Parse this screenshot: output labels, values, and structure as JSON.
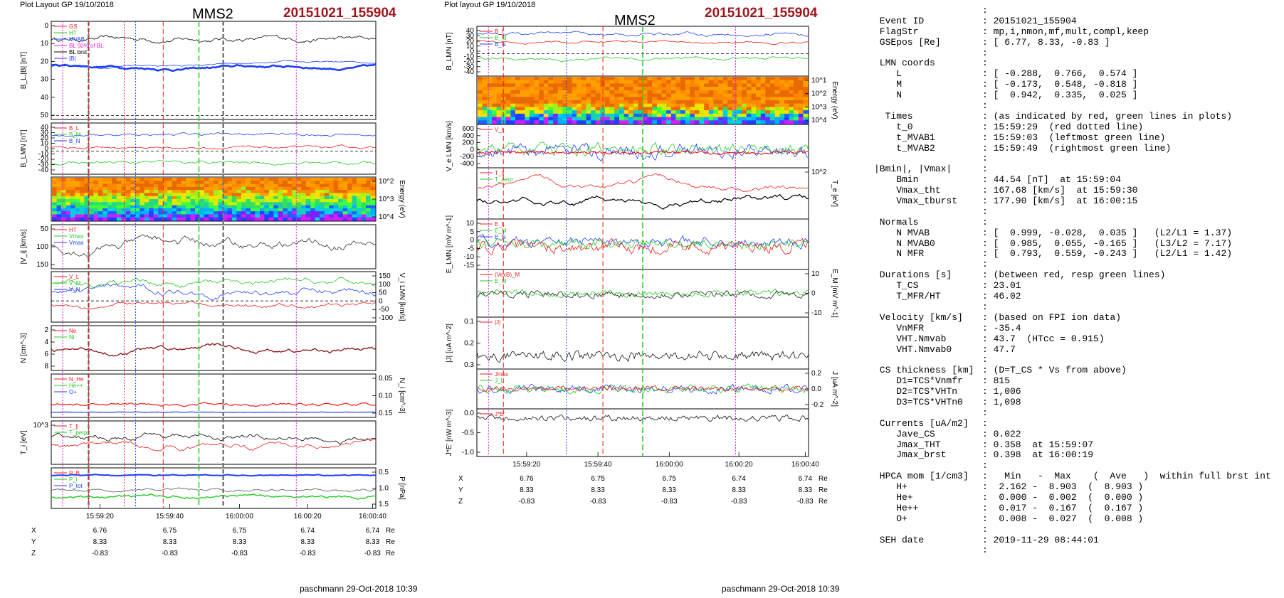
{
  "page": {
    "left_header": "Plot Layout GP 19/10/2018",
    "middle_header": "Plot layout GP 19/10/2018",
    "spacecraft": "MMS2",
    "event": "20151021_155904",
    "footer": "paschmann 29-Oct-2018 10:39"
  },
  "colors": {
    "event_red": "#a0161c",
    "blue": "#1f3fff",
    "green": "#1fcc1f",
    "red": "#ee1c1c",
    "magenta": "#e020e0",
    "black": "#000000"
  },
  "left_panels": [
    {
      "label": "B_L,|B| [nT]",
      "ticks": [
        "0",
        "10",
        "20",
        "30",
        "40",
        "50"
      ],
      "legend": [
        "GS",
        "HT",
        "MVAB",
        "BL 50% of BL",
        "BL brst",
        "|B|"
      ]
    },
    {
      "label": "B_LMN [nT]",
      "ticks": [
        "40",
        "30",
        "20",
        "10",
        "0",
        "-10",
        "-20",
        "-30",
        "-40"
      ],
      "legend": [
        "B_L",
        "B_M",
        "B_N"
      ]
    },
    {
      "label": "Energy (eV)",
      "ticks": [
        "10^2",
        "10^3",
        "10^4"
      ],
      "legend": []
    },
    {
      "label": "|V_i| [km/s]",
      "ticks": [
        "50",
        "100",
        "150"
      ],
      "legend": [
        "HT",
        "Vmax",
        "Vmax"
      ]
    },
    {
      "label": "V_i LMN [km/s]",
      "ticks": [
        "150",
        "100",
        "50",
        "0",
        "-50",
        "-100"
      ],
      "legend": [
        "V_L",
        "V_M",
        "V_N"
      ]
    },
    {
      "label": "N [cm^-3]",
      "ticks": [
        "2",
        "4",
        "6",
        "8"
      ],
      "legend": [
        "Ne",
        "Ni"
      ]
    },
    {
      "label": "N_i [cm^-3]",
      "ticks": [
        "0.05",
        "0.10",
        "0.15"
      ],
      "legend": [
        "N_He",
        "He++",
        "O+"
      ]
    },
    {
      "label": "T_i [eV]",
      "ticks": [
        "10^3"
      ],
      "legend": [
        "T_||",
        "T_perp"
      ]
    },
    {
      "label": "P [nPa]",
      "ticks": [
        "0.5",
        "1.0",
        "1.5"
      ],
      "legend": [
        "P_B",
        "P_i",
        "P_tot"
      ]
    }
  ],
  "middle_panels": [
    {
      "label": "B_LMN [nT]",
      "ticks": [
        "40",
        "30",
        "20",
        "10",
        "0",
        "-10",
        "-20",
        "-30",
        "-40"
      ],
      "legend": [
        "B_L",
        "B_M",
        "B_N"
      ]
    },
    {
      "label": "Energy (eV)",
      "ticks": [
        "10^1",
        "10^2",
        "10^3",
        "10^4"
      ],
      "legend": []
    },
    {
      "label": "V_e LMN [km/s]",
      "ticks": [
        "600",
        "400",
        "200",
        "0",
        "-200",
        "-400"
      ],
      "legend": [
        "V_L"
      ]
    },
    {
      "label": "T_e [eV]",
      "ticks": [
        "10^2"
      ],
      "legend": [
        "T_||",
        "T_perp"
      ]
    },
    {
      "label": "E_LMN [mV m^-1]",
      "ticks": [
        "10",
        "5",
        "0",
        "-5",
        "-10",
        "-15"
      ],
      "legend": [
        "E_L",
        "E_M",
        "E_N"
      ]
    },
    {
      "label": "E_M [mV m^-1]",
      "ticks": [
        "10",
        "0",
        "-10"
      ],
      "legend": [
        "(VexB)_M",
        "E_M"
      ]
    },
    {
      "label": "|J| [uA m^-2]",
      "ticks": [
        "0.1",
        "0.2",
        "0.3"
      ],
      "legend": [
        "|J|"
      ]
    },
    {
      "label": "J [uA m^-2]",
      "ticks": [
        "0.2",
        "0.0",
        "-0.2"
      ],
      "legend": [
        "Jmax",
        "J_L"
      ]
    },
    {
      "label": "J*E' [nW m^-3]",
      "ticks": [
        "0.0",
        "-0.5",
        "-1.0"
      ],
      "legend": [
        "J*E'"
      ]
    }
  ],
  "left_time_ticks": [
    "15:59:20",
    "15:59:40",
    "16:00:00",
    "16:00:20",
    "16:00:40"
  ],
  "middle_time_ticks": [
    "15:59:20",
    "15:59:40",
    "16:00:00",
    "16:00:20",
    "16:00:40"
  ],
  "position_table": {
    "rows": [
      {
        "label": "X",
        "values": [
          "6.76",
          "6.75",
          "6.75",
          "6.74",
          "6.74"
        ],
        "unit": "Re"
      },
      {
        "label": "Y",
        "values": [
          "8.33",
          "8.33",
          "8.33",
          "8.33",
          "8.33"
        ],
        "unit": "Re"
      },
      {
        "label": "Z",
        "values": [
          "-0.83",
          "-0.83",
          "-0.83",
          "-0.83",
          "-0.83"
        ],
        "unit": "Re"
      }
    ]
  },
  "summary_lines": [
    [
      "",
      ":"
    ],
    [
      " Event ID",
      ": 20151021_155904"
    ],
    [
      " FlagStr",
      ": mp,i,nmon,mf,mult,compl,keep"
    ],
    [
      " GSEpos [Re]",
      ": [ 6.77, 8.33, -0.83 ]"
    ],
    [
      "",
      ":"
    ],
    [
      " LMN coords",
      ":"
    ],
    [
      "    L",
      ": [ -0.288,  0.766,  0.574 ]"
    ],
    [
      "    M",
      ": [ -0.173,  0.548, -0.818 ]"
    ],
    [
      "    N",
      ": [  0.942,  0.335,  0.025 ]"
    ],
    [
      "",
      ":"
    ],
    [
      "  Times",
      ": (as indicated by red, green lines in plots)"
    ],
    [
      "    t_0",
      ": 15:59:29  (red dotted line)"
    ],
    [
      "    t_MVAB1",
      ": 15:59:03  (leftmost green line)"
    ],
    [
      "    t_MVAB2",
      ": 15:59:49  (rightmost green line)"
    ],
    [
      "",
      ":"
    ],
    [
      "|Bmin|, |Vmax|",
      ":"
    ],
    [
      "    Bmin",
      ": 44.54 [nT]  at 15:59:04"
    ],
    [
      "    Vmax_tht",
      ": 167.68 [km/s]  at 15:59:30"
    ],
    [
      "    Vmax_tburst",
      ": 177.90 [km/s]  at 16:00:15"
    ],
    [
      "",
      ":"
    ],
    [
      " Normals",
      ":"
    ],
    [
      "    N MVAB",
      ": [  0.999, -0.028,  0.035 ]   (L2/L1 = 1.37)"
    ],
    [
      "    N MVAB0",
      ": [  0.985,  0.055, -0.165 ]   (L3/L2 = 7.17)"
    ],
    [
      "    N MFR",
      ": [  0.793,  0.559, -0.243 ]   (L2/L1 = 1.42)"
    ],
    [
      "",
      ":"
    ],
    [
      " Durations [s]",
      ": (between red, resp green lines)"
    ],
    [
      "    T_CS",
      ": 23.01"
    ],
    [
      "    T_MFR/HT",
      ": 46.02"
    ],
    [
      "",
      ":"
    ],
    [
      " Velocity [km/s]",
      ": (based on FPI ion data)"
    ],
    [
      "    VnMFR",
      ": -35.4"
    ],
    [
      "    VHT.Nmvab",
      ": 43.7  (HTcc = 0.915)"
    ],
    [
      "    VHT.Nmvab0",
      ": 47.7"
    ],
    [
      "",
      ":"
    ],
    [
      " CS thickness [km]",
      ": (D=T_CS * Vs from above)"
    ],
    [
      "    D1=TCS*Vnmfr",
      ": 815"
    ],
    [
      "    D2=TCS*VHTn",
      ": 1,006"
    ],
    [
      "    D3=TCS*VHTn0",
      ": 1,098"
    ],
    [
      "",
      ":"
    ],
    [
      " Currents [uA/m2]",
      ":"
    ],
    [
      "    Jave_CS",
      ": 0.022"
    ],
    [
      "    Jmax_THT",
      ": 0.358  at 15:59:07"
    ],
    [
      "    Jmax_brst",
      ": 0.398  at 16:00:19"
    ],
    [
      "",
      ":"
    ],
    [
      " HPCA mom [1/cm3]",
      ":   Min   -  Max    (  Ave   )  within full brst int"
    ],
    [
      "    H+",
      ":  2.162 -  8.903  (  8.903 )"
    ],
    [
      "    He+",
      ":  0.000 -  0.002  (  0.000 )"
    ],
    [
      "    He++",
      ":  0.017 -  0.167  (  0.167 )"
    ],
    [
      "    O+",
      ":  0.008 -  0.027  (  0.008 )"
    ],
    [
      "",
      ":"
    ],
    [
      " SEH date",
      ": 2019-11-29 08:44:01"
    ],
    [
      "",
      ":"
    ]
  ]
}
